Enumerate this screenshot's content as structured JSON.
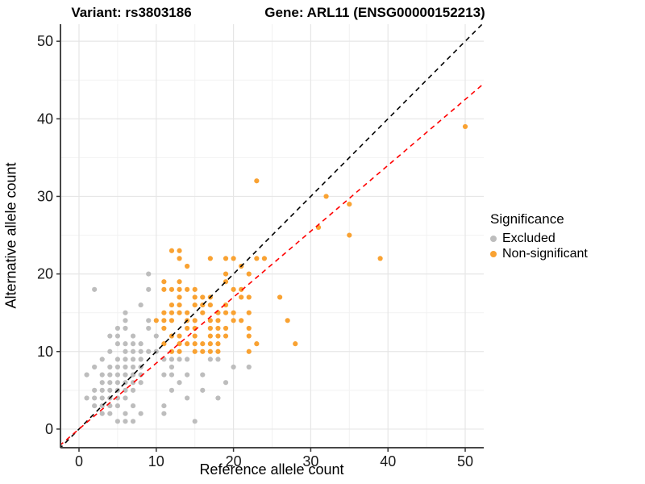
{
  "chart_data": {
    "type": "scatter",
    "title_left": "Variant: rs3803186",
    "title_right": "Gene: ARL11 (ENSG00000152213)",
    "xlabel": "Reference allele count",
    "ylabel": "Alternative allele count",
    "x_ticks": [
      0,
      10,
      20,
      30,
      40,
      50
    ],
    "y_ticks": [
      0,
      10,
      20,
      30,
      40,
      50
    ],
    "minor_ticks": [
      5,
      15,
      25,
      35,
      45
    ],
    "x_domain": [
      -2.4,
      52.4
    ],
    "y_domain": [
      -2.4,
      52.2
    ],
    "grid": true,
    "legend": {
      "title": "Significance",
      "position": "right"
    },
    "series": [
      {
        "name": "Excluded",
        "color": "#BDBDBD",
        "points": [
          [
            2,
            18
          ],
          [
            9,
            20
          ],
          [
            9,
            18
          ],
          [
            8,
            16
          ],
          [
            6,
            15
          ],
          [
            6,
            14
          ],
          [
            9,
            14
          ],
          [
            5,
            13
          ],
          [
            6,
            13
          ],
          [
            9,
            13
          ],
          [
            4,
            12
          ],
          [
            5,
            12
          ],
          [
            7,
            12
          ],
          [
            10,
            12
          ],
          [
            5,
            11
          ],
          [
            6,
            11
          ],
          [
            7,
            11
          ],
          [
            8,
            11
          ],
          [
            4,
            10
          ],
          [
            6,
            10
          ],
          [
            7,
            10
          ],
          [
            8,
            10
          ],
          [
            9,
            10
          ],
          [
            10,
            10
          ],
          [
            3,
            9
          ],
          [
            5,
            9
          ],
          [
            6,
            9
          ],
          [
            7,
            9
          ],
          [
            8,
            9
          ],
          [
            11,
            9
          ],
          [
            12,
            9
          ],
          [
            13,
            9
          ],
          [
            14,
            9
          ],
          [
            17,
            9
          ],
          [
            18,
            9
          ],
          [
            2,
            8
          ],
          [
            4,
            8
          ],
          [
            5,
            8
          ],
          [
            6,
            8
          ],
          [
            7,
            8
          ],
          [
            8,
            8
          ],
          [
            12,
            8
          ],
          [
            20,
            8
          ],
          [
            22,
            8
          ],
          [
            1,
            7
          ],
          [
            3,
            7
          ],
          [
            4,
            7
          ],
          [
            5,
            7
          ],
          [
            6,
            7
          ],
          [
            7,
            7
          ],
          [
            8,
            7
          ],
          [
            11,
            7
          ],
          [
            12,
            7
          ],
          [
            14,
            7
          ],
          [
            16,
            7
          ],
          [
            3,
            6
          ],
          [
            4,
            6
          ],
          [
            5,
            6
          ],
          [
            6,
            6
          ],
          [
            7,
            6
          ],
          [
            8,
            6
          ],
          [
            13,
            6
          ],
          [
            19,
            6
          ],
          [
            2,
            5
          ],
          [
            3,
            5
          ],
          [
            4,
            5
          ],
          [
            5,
            5
          ],
          [
            6,
            5
          ],
          [
            7,
            5
          ],
          [
            12,
            5
          ],
          [
            16,
            5
          ],
          [
            1,
            4
          ],
          [
            2,
            4
          ],
          [
            3,
            4
          ],
          [
            4,
            4
          ],
          [
            5,
            4
          ],
          [
            6,
            4
          ],
          [
            14,
            4
          ],
          [
            18,
            4
          ],
          [
            2,
            3
          ],
          [
            3,
            3
          ],
          [
            4,
            3
          ],
          [
            5,
            3
          ],
          [
            7,
            3
          ],
          [
            11,
            3
          ],
          [
            3,
            2
          ],
          [
            4,
            2
          ],
          [
            6,
            2
          ],
          [
            8,
            2
          ],
          [
            11,
            2
          ],
          [
            5,
            1
          ],
          [
            6,
            1
          ],
          [
            7,
            1
          ],
          [
            15,
            1
          ]
        ]
      },
      {
        "name": "Non-significant",
        "color": "#F9A232",
        "points": [
          [
            12,
            23
          ],
          [
            13,
            23
          ],
          [
            13,
            22
          ],
          [
            17,
            22
          ],
          [
            19,
            22
          ],
          [
            20,
            22
          ],
          [
            23,
            22
          ],
          [
            24,
            22
          ],
          [
            14,
            21
          ],
          [
            21,
            21
          ],
          [
            19,
            20
          ],
          [
            22,
            20
          ],
          [
            11,
            19
          ],
          [
            13,
            19
          ],
          [
            19,
            19
          ],
          [
            11,
            18
          ],
          [
            12,
            18
          ],
          [
            13,
            18
          ],
          [
            14,
            18
          ],
          [
            15,
            18
          ],
          [
            20,
            18
          ],
          [
            21,
            18
          ],
          [
            13,
            17
          ],
          [
            15,
            17
          ],
          [
            16,
            17
          ],
          [
            17,
            17
          ],
          [
            21,
            17
          ],
          [
            22,
            17
          ],
          [
            26,
            17
          ],
          [
            12,
            16
          ],
          [
            13,
            16
          ],
          [
            15,
            16
          ],
          [
            16,
            16
          ],
          [
            17,
            16
          ],
          [
            19,
            16
          ],
          [
            11,
            15
          ],
          [
            12,
            15
          ],
          [
            13,
            15
          ],
          [
            14,
            15
          ],
          [
            16,
            15
          ],
          [
            18,
            15
          ],
          [
            19,
            15
          ],
          [
            20,
            15
          ],
          [
            22,
            15
          ],
          [
            10,
            14
          ],
          [
            11,
            14
          ],
          [
            12,
            14
          ],
          [
            14,
            14
          ],
          [
            15,
            14
          ],
          [
            17,
            14
          ],
          [
            18,
            14
          ],
          [
            20,
            14
          ],
          [
            21,
            14
          ],
          [
            27,
            14
          ],
          [
            11,
            13
          ],
          [
            14,
            13
          ],
          [
            15,
            13
          ],
          [
            17,
            13
          ],
          [
            18,
            13
          ],
          [
            19,
            13
          ],
          [
            22,
            13
          ],
          [
            12,
            12
          ],
          [
            13,
            12
          ],
          [
            15,
            12
          ],
          [
            17,
            12
          ],
          [
            18,
            12
          ],
          [
            19,
            12
          ],
          [
            22,
            12
          ],
          [
            11,
            11
          ],
          [
            13,
            11
          ],
          [
            14,
            11
          ],
          [
            15,
            11
          ],
          [
            16,
            11
          ],
          [
            17,
            11
          ],
          [
            18,
            11
          ],
          [
            23,
            11
          ],
          [
            28,
            11
          ],
          [
            12,
            10
          ],
          [
            13,
            10
          ],
          [
            15,
            10
          ],
          [
            16,
            10
          ],
          [
            17,
            10
          ],
          [
            18,
            10
          ],
          [
            22,
            10
          ],
          [
            23,
            32
          ],
          [
            32,
            30
          ],
          [
            35,
            29
          ],
          [
            31,
            26
          ],
          [
            35,
            25
          ],
          [
            39,
            22
          ],
          [
            50,
            39
          ]
        ]
      }
    ],
    "lines": [
      {
        "name": "identity",
        "color": "#000000",
        "style": "dashed",
        "slope": 1,
        "intercept": 0
      },
      {
        "name": "fit",
        "color": "#FF0000",
        "style": "dashed",
        "slope": 0.85,
        "intercept": 0
      }
    ]
  }
}
